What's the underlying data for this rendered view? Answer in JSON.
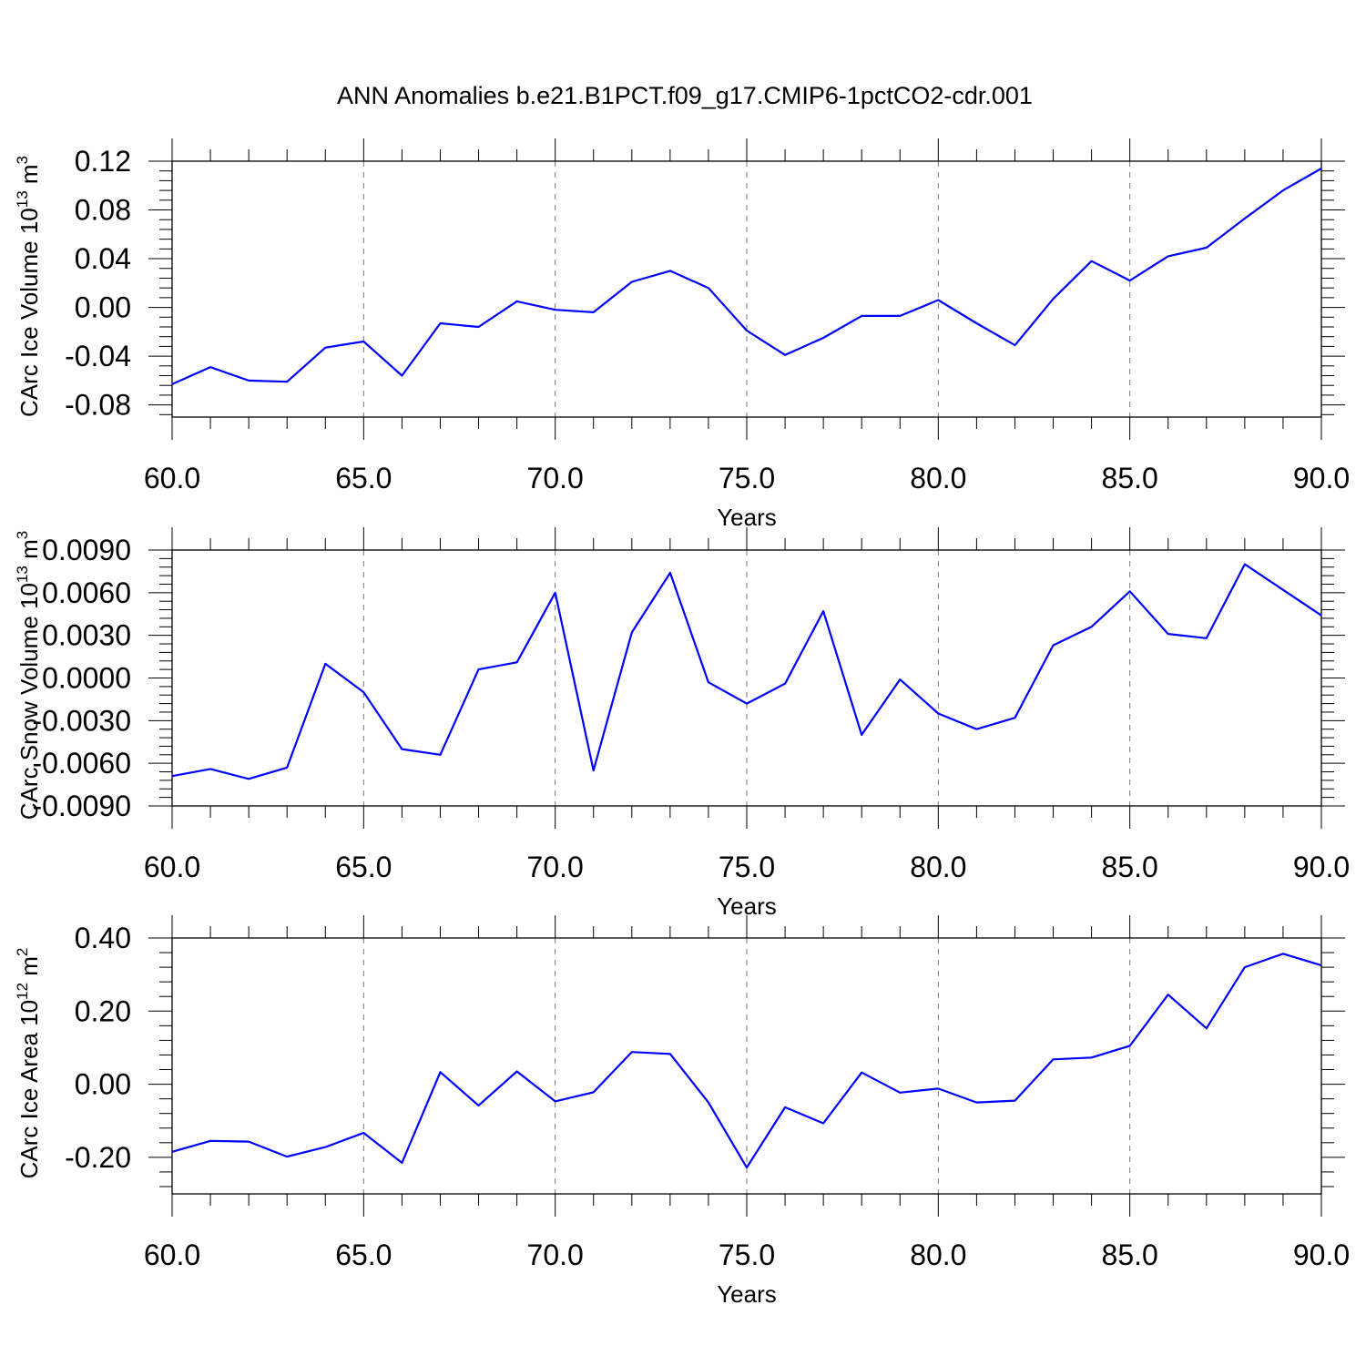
{
  "figure": {
    "title": "ANN Anomalies b.e21.B1PCT.f09_g17.CMIP6-1pctCO2-cdr.001",
    "line_color": "#0000ff"
  },
  "chart_data": [
    {
      "type": "line",
      "xlabel": "Years",
      "ylabel": {
        "base": "CArc Ice Volume 10",
        "sup1": "13",
        "mid": " m",
        "sup2": "3"
      },
      "xlim": [
        60,
        90
      ],
      "ylim": [
        -0.09,
        0.12
      ],
      "xticks": [
        60,
        65,
        70,
        75,
        80,
        85,
        90
      ],
      "xtick_labels": [
        "60.0",
        "65.0",
        "70.0",
        "75.0",
        "80.0",
        "85.0",
        "90.0"
      ],
      "yticks": [
        -0.08,
        -0.04,
        0.0,
        0.04,
        0.08,
        0.12
      ],
      "ytick_labels": [
        "-0.08",
        "-0.04",
        "0.00",
        "0.04",
        "0.08",
        "0.12"
      ],
      "grid": "vertical-dashed",
      "x": [
        60,
        61,
        62,
        63,
        64,
        65,
        66,
        67,
        68,
        69,
        70,
        71,
        72,
        73,
        74,
        75,
        76,
        77,
        78,
        79,
        80,
        81,
        82,
        83,
        84,
        85,
        86,
        87,
        88,
        89,
        90
      ],
      "y": [
        -0.063,
        -0.049,
        -0.06,
        -0.061,
        -0.033,
        -0.028,
        -0.056,
        -0.013,
        -0.016,
        0.005,
        -0.002,
        -0.004,
        0.021,
        0.03,
        0.016,
        -0.019,
        -0.039,
        -0.025,
        -0.007,
        -0.007,
        0.006,
        -0.013,
        -0.031,
        0.007,
        0.038,
        0.022,
        0.042,
        0.049,
        0.073,
        0.096,
        0.114
      ]
    },
    {
      "type": "line",
      "xlabel": "Years",
      "ylabel": {
        "base": "CArc Snow Volume 10",
        "sup1": "13",
        "mid": " m",
        "sup2": "3"
      },
      "xlim": [
        60,
        90
      ],
      "ylim": [
        -0.009,
        0.009
      ],
      "xticks": [
        60,
        65,
        70,
        75,
        80,
        85,
        90
      ],
      "xtick_labels": [
        "60.0",
        "65.0",
        "70.0",
        "75.0",
        "80.0",
        "85.0",
        "90.0"
      ],
      "yticks": [
        -0.009,
        -0.006,
        -0.003,
        0.0,
        0.003,
        0.006,
        0.009
      ],
      "ytick_labels": [
        "-0.0090",
        "-0.0060",
        "-0.0030",
        "0.0000",
        "0.0030",
        "0.0060",
        "0.0090"
      ],
      "grid": "vertical-dashed",
      "x": [
        60,
        61,
        62,
        63,
        64,
        65,
        66,
        67,
        68,
        69,
        70,
        71,
        72,
        73,
        74,
        75,
        76,
        77,
        78,
        79,
        80,
        81,
        82,
        83,
        84,
        85,
        86,
        87,
        88,
        89,
        90
      ],
      "y": [
        -0.0069,
        -0.0064,
        -0.0071,
        -0.0063,
        0.001,
        -0.001,
        -0.005,
        -0.0054,
        0.0006,
        0.0011,
        0.006,
        -0.0065,
        0.0032,
        0.0074,
        -0.0003,
        -0.0018,
        -0.0004,
        0.0047,
        -0.004,
        -0.0001,
        -0.0025,
        -0.0036,
        -0.0028,
        0.0023,
        0.0036,
        0.0061,
        0.0031,
        0.0028,
        0.008,
        0.0062,
        0.0044
      ]
    },
    {
      "type": "line",
      "xlabel": "Years",
      "ylabel": {
        "base": "CArc Ice Area 10",
        "sup1": "12",
        "mid": " m",
        "sup2": "2"
      },
      "xlim": [
        60,
        90
      ],
      "ylim": [
        -0.3,
        0.4
      ],
      "xticks": [
        60,
        65,
        70,
        75,
        80,
        85,
        90
      ],
      "xtick_labels": [
        "60.0",
        "65.0",
        "70.0",
        "75.0",
        "80.0",
        "85.0",
        "90.0"
      ],
      "yticks": [
        -0.2,
        0.0,
        0.2,
        0.4
      ],
      "ytick_labels": [
        "-0.20",
        "0.00",
        "0.20",
        "0.40"
      ],
      "grid": "vertical-dashed",
      "x": [
        60,
        61,
        62,
        63,
        64,
        65,
        66,
        67,
        68,
        69,
        70,
        71,
        72,
        73,
        74,
        75,
        76,
        77,
        78,
        79,
        80,
        81,
        82,
        83,
        84,
        85,
        86,
        87,
        88,
        89,
        90
      ],
      "y": [
        -0.185,
        -0.155,
        -0.157,
        -0.198,
        -0.172,
        -0.133,
        -0.215,
        0.033,
        -0.058,
        0.035,
        -0.047,
        -0.022,
        0.088,
        0.083,
        -0.05,
        -0.228,
        -0.063,
        -0.107,
        0.032,
        -0.023,
        -0.012,
        -0.05,
        -0.045,
        0.068,
        0.073,
        0.105,
        0.245,
        0.153,
        0.32,
        0.357,
        0.325
      ]
    }
  ]
}
